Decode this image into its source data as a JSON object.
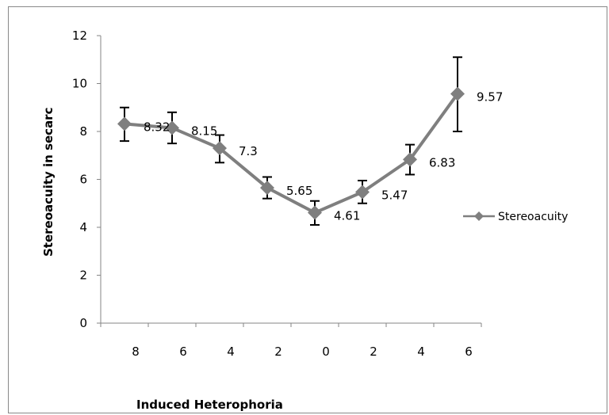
{
  "chart_data": {
    "type": "line",
    "title": "",
    "xlabel": "Induced Heterophoria",
    "ylabel": "Stereoacuity in secarc",
    "categories": [
      "8",
      "6",
      "4",
      "2",
      "0",
      "2",
      "4",
      "6"
    ],
    "ylim": [
      0,
      12
    ],
    "yticks": [
      0,
      2,
      4,
      6,
      8,
      10,
      12
    ],
    "grid": false,
    "legend_position": "right",
    "series": [
      {
        "name": "Stereoacuity",
        "values": [
          8.32,
          8.15,
          7.3,
          5.65,
          4.61,
          5.47,
          6.83,
          9.57
        ],
        "labels": [
          "8.32",
          "8.15",
          "7.3",
          "5.65",
          "4.61",
          "5.47",
          "6.83",
          "9.57"
        ],
        "error_low": [
          7.6,
          7.5,
          6.7,
          5.2,
          4.1,
          5.0,
          6.2,
          8.0
        ],
        "error_high": [
          9.0,
          8.8,
          7.85,
          6.1,
          5.1,
          5.95,
          7.45,
          11.1
        ],
        "color": "#7f7f7f"
      }
    ]
  }
}
